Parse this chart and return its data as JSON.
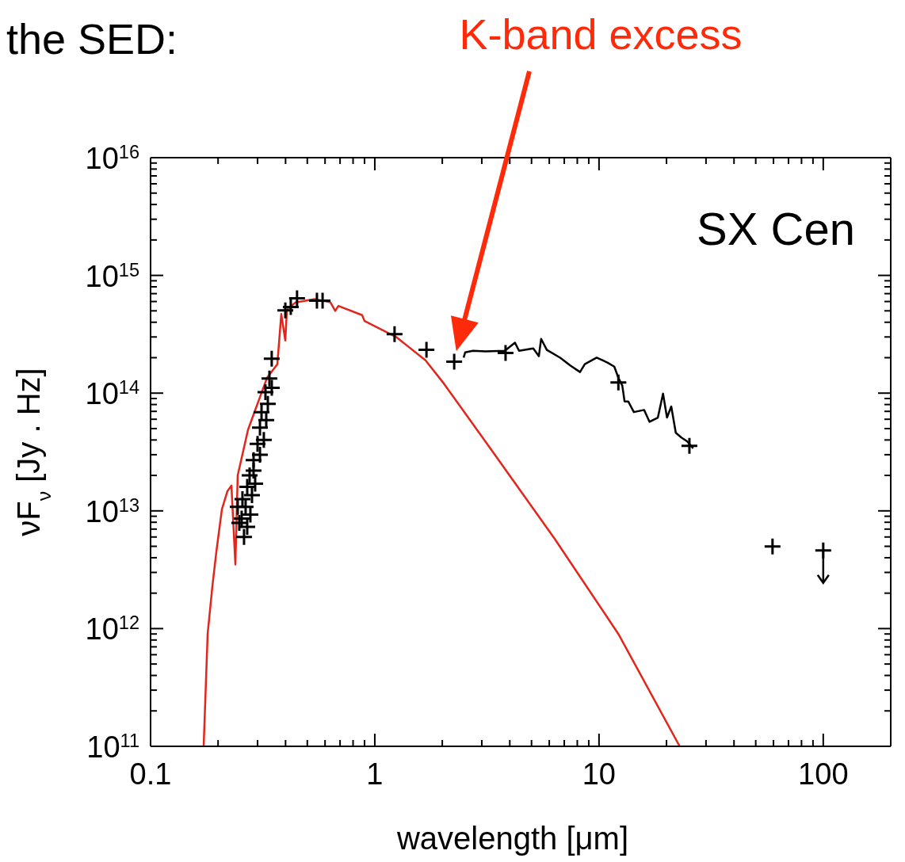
{
  "chart_data": {
    "type": "scatter",
    "title": "the SED:",
    "xlabel": "wavelength [μm]",
    "ylabel": "νF$_{ν}$ [Jy . Hz]",
    "annotations": [
      "K-band excess",
      "SX Cen"
    ],
    "log": "xy",
    "xlim": [
      0.1,
      200
    ],
    "ylim": [
      100000000000.0,
      1e+16
    ],
    "xticks": [
      0.1,
      {
        "value": 0.2,
        "label": null
      },
      {
        "value": 0.3,
        "label": null
      },
      {
        "value": 0.4,
        "label": null
      },
      {
        "value": 0.5,
        "label": null
      },
      {
        "value": 0.6,
        "label": null
      },
      {
        "value": 0.7,
        "label": null
      },
      {
        "value": 0.8,
        "label": null
      },
      {
        "value": 0.9,
        "label": null
      },
      1,
      {
        "value": 2,
        "label": null
      },
      {
        "value": 3,
        "label": null
      },
      {
        "value": 4,
        "label": null
      },
      {
        "value": 5,
        "label": null
      },
      {
        "value": 6,
        "label": null
      },
      {
        "value": 7,
        "label": null
      },
      {
        "value": 8,
        "label": null
      },
      {
        "value": 9,
        "label": null
      },
      10,
      {
        "value": 20,
        "label": null
      },
      {
        "value": 30,
        "label": null
      },
      {
        "value": 40,
        "label": null
      },
      {
        "value": 50,
        "label": null
      },
      {
        "value": 60,
        "label": null
      },
      {
        "value": 70,
        "label": null
      },
      {
        "value": 80,
        "label": null
      },
      {
        "value": 90,
        "label": null
      },
      100
    ],
    "yticks": [
      {
        "value": 100000000000.0,
        "label": "10$^{11}$"
      },
      {
        "value": 200000000000.0,
        "label": null
      },
      {
        "value": 300000000000.0,
        "label": null
      },
      {
        "value": 400000000000.0,
        "label": null
      },
      {
        "value": 500000000000.0,
        "label": null
      },
      {
        "value": 600000000000.0,
        "label": null
      },
      {
        "value": 700000000000.0,
        "label": null
      },
      {
        "value": 800000000000.0,
        "label": null
      },
      {
        "value": 900000000000.0,
        "label": null
      },
      {
        "value": 1000000000000.0,
        "label": "10$^{12}$"
      },
      {
        "value": 2000000000000.0,
        "label": null
      },
      {
        "value": 3000000000000.0,
        "label": null
      },
      {
        "value": 4000000000000.0,
        "label": null
      },
      {
        "value": 5000000000000.0,
        "label": null
      },
      {
        "value": 6000000000000.0,
        "label": null
      },
      {
        "value": 7000000000000.0,
        "label": null
      },
      {
        "value": 8000000000000.0,
        "label": null
      },
      {
        "value": 9000000000000.0,
        "label": null
      },
      {
        "value": 10000000000000.0,
        "label": "10$^{13}$"
      },
      {
        "value": 20000000000000.0,
        "label": null
      },
      {
        "value": 30000000000000.0,
        "label": null
      },
      {
        "value": 40000000000000.0,
        "label": null
      },
      {
        "value": 50000000000000.0,
        "label": null
      },
      {
        "value": 60000000000000.0,
        "label": null
      },
      {
        "value": 70000000000000.0,
        "label": null
      },
      {
        "value": 80000000000000.0,
        "label": null
      },
      {
        "value": 90000000000000.0,
        "label": null
      },
      {
        "value": 100000000000000.0,
        "label": "10$^{14}$"
      },
      {
        "value": 200000000000000.0,
        "label": null
      },
      {
        "value": 300000000000000.0,
        "label": null
      },
      {
        "value": 400000000000000.0,
        "label": null
      },
      {
        "value": 500000000000000.0,
        "label": null
      },
      {
        "value": 600000000000000.0,
        "label": null
      },
      {
        "value": 700000000000000.0,
        "label": null
      },
      {
        "value": 800000000000000.0,
        "label": null
      },
      {
        "value": 900000000000000.0,
        "label": null
      },
      {
        "value": 1000000000000000.0,
        "label": "10$^{15}$"
      },
      {
        "value": 2000000000000000.0,
        "label": null
      },
      {
        "value": 3000000000000000.0,
        "label": null
      },
      {
        "value": 4000000000000000.0,
        "label": null
      },
      {
        "value": 5000000000000000.0,
        "label": null
      },
      {
        "value": 6000000000000000.0,
        "label": null
      },
      {
        "value": 7000000000000000.0,
        "label": null
      },
      {
        "value": 8000000000000000.0,
        "label": null
      },
      {
        "value": 9000000000000000.0,
        "label": null
      },
      {
        "value": 1e+16,
        "label": "10$^{16}$"
      }
    ],
    "series": [
      {
        "type": "line",
        "color": "#e3261c",
        "x": [
          0.1725,
          0.1797,
          0.1887,
          0.1965,
          0.208,
          0.2202,
          0.2294,
          0.2389,
          0.2447,
          0.2721,
          0.3307,
          0.3676,
          0.3828,
          0.3989,
          0.4055,
          0.4434,
          0.5389,
          0.6343,
          0.666,
          0.6879,
          0.878,
          0.9,
          1.245,
          1.683,
          2.03,
          3.31,
          6.34,
          12.2,
          22.9
        ],
        "values": [
          100000000000.0,
          900000000000.0,
          2300000000000.0,
          4500000000000.0,
          10300000000000.0,
          14700000000000.0,
          16400000000000.0,
          3500000000000.0,
          20000000000000.0,
          49000000000000.0,
          135000000000000.0,
          176000000000000.0,
          470000000000000.0,
          280000000000000.0,
          510000000000000.0,
          590000000000000.0,
          630000000000000.0,
          590000000000000.0,
          500000000000000.0,
          550000000000000.0,
          460000000000000.0,
          410000000000000.0,
          300000000000000.0,
          190000000000000.0,
          121000000000000.0,
          33000000000000.0,
          5800000000000.0,
          900000000000.0,
          100000000000.0
        ]
      },
      {
        "type": "line",
        "color": "#000000",
        "x": [
          2.49,
          2.53,
          2.74,
          3.12,
          3.8,
          4.22,
          4.4,
          5.09,
          5.39,
          5.52,
          5.85,
          6.71,
          7.46,
          8.23,
          8.64,
          9.76,
          10.9,
          11.7,
          12.2,
          12.7,
          13.0,
          13.5,
          14.3,
          15.9,
          16.8,
          18.3,
          19.3,
          20.1,
          21.0,
          22.0,
          23.3,
          24.7,
          26.3
        ],
        "values": [
          200000000000000.0,
          222000000000000.0,
          229000000000000.0,
          226000000000000.0,
          229000000000000.0,
          268000000000000.0,
          229000000000000.0,
          240000000000000.0,
          206000000000000.0,
          289000000000000.0,
          233000000000000.0,
          200000000000000.0,
          171000000000000.0,
          151000000000000.0,
          176000000000000.0,
          200000000000000.0,
          182000000000000.0,
          168000000000000.0,
          135000000000000.0,
          116000000000000.0,
          85000000000000.0,
          85000000000000.0,
          69000000000000.0,
          72000000000000.0,
          57000000000000.0,
          62000000000000.0,
          99000000000000.0,
          62000000000000.0,
          77000000000000.0,
          46000000000000.0,
          42000000000000.0,
          39000000000000.0,
          34000000000000.0
        ]
      },
      {
        "color": "#000000",
        "marker": "cross",
        "x": [
          0.2447,
          0.2487,
          0.2548,
          0.2569,
          0.2611,
          0.2654,
          0.2698,
          0.2698,
          0.2765,
          0.2787,
          0.2833,
          0.288,
          0.288,
          0.2927,
          0.3,
          0.3075,
          0.3075,
          0.3125,
          0.32,
          0.3253,
          0.328,
          0.3334,
          0.3389,
          0.3472,
          0.347,
          0.399,
          0.422,
          0.45,
          0.552,
          0.585,
          1.225,
          1.7,
          2.26,
          3.83,
          12.2,
          25.3,
          59.4,
          100
        ],
        "values": [
          10800000000000.0,
          7900000000000.0,
          8600000000000.0,
          12600000000000.0,
          6000000000000.0,
          10800000000000.0,
          7300000000000.0,
          16000000000000.0,
          20000000000000.0,
          9300000000000.0,
          13600000000000.0,
          27000000000000.0,
          22000000000000.0,
          17000000000000.0,
          37000000000000.0,
          30000000000000.0,
          51000000000000.0,
          69000000000000.0,
          40000000000000.0,
          102000000000000.0,
          59000000000000.0,
          81000000000000.0,
          133000000000000.0,
          111000000000000.0,
          196000000000000.0,
          505000000000000.0,
          538000000000000.0,
          638000000000000.0,
          609000000000000.0,
          609000000000000.0,
          317000000000000.0,
          233000000000000.0,
          185000000000000.0,
          219000000000000.0,
          123000000000000.0,
          35700000000000.0,
          4980000000000.0,
          4610000000000.0
        ]
      }
    ]
  }
}
